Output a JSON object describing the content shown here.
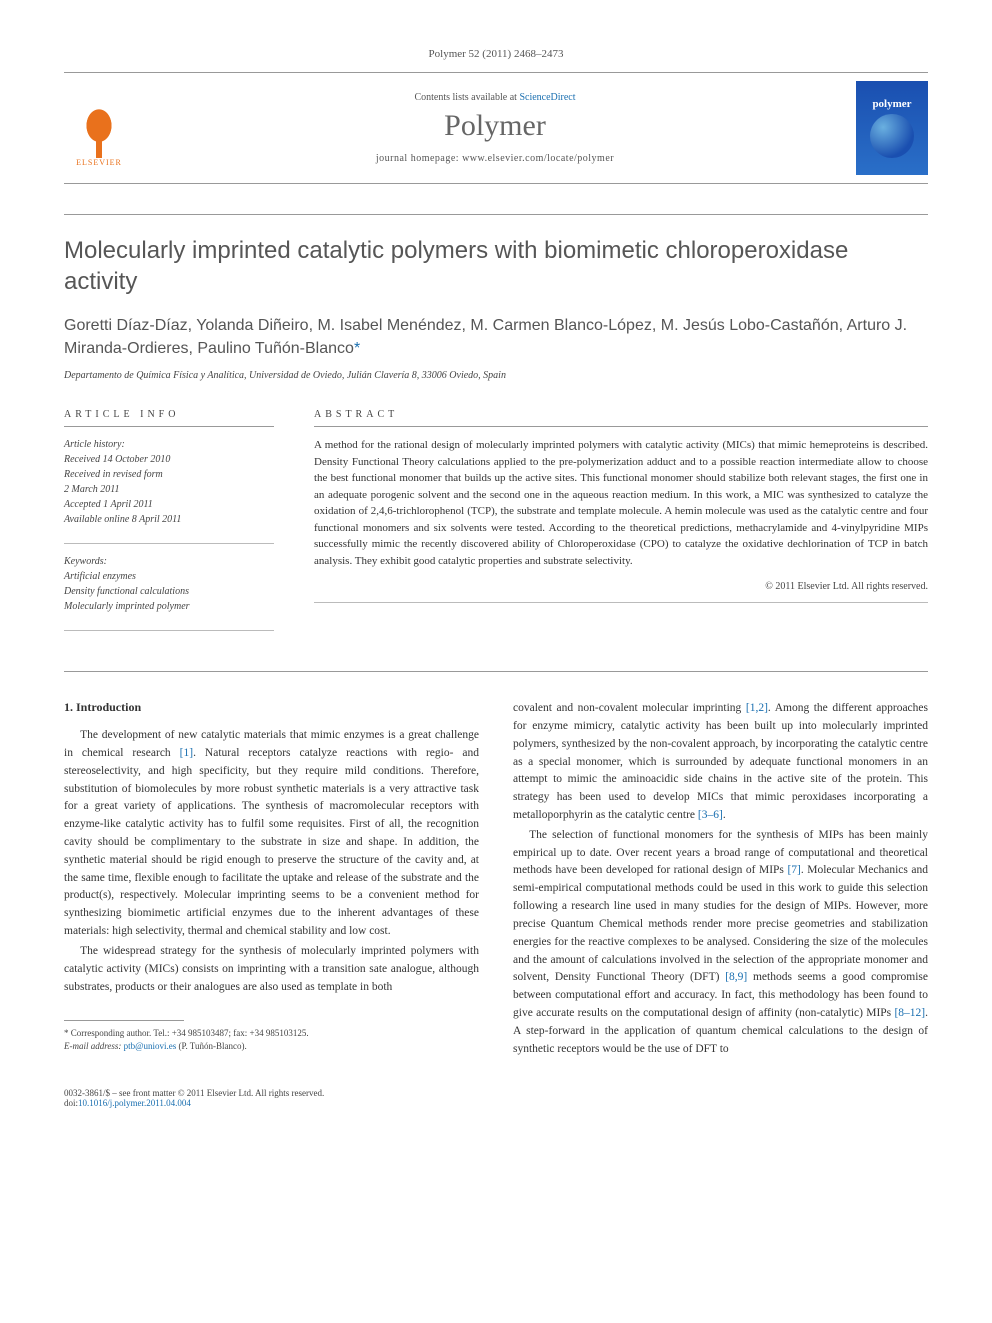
{
  "citation": "Polymer 52 (2011) 2468–2473",
  "header": {
    "contents_prefix": "Contents lists available at ",
    "contents_link": "ScienceDirect",
    "journal": "Polymer",
    "homepage_prefix": "journal homepage: ",
    "homepage_url": "www.elsevier.com/locate/polymer",
    "publisher": "ELSEVIER",
    "cover_label": "polymer"
  },
  "article": {
    "title": "Molecularly imprinted catalytic polymers with biomimetic chloroperoxidase activity",
    "authors": "Goretti Díaz-Díaz, Yolanda Diñeiro, M. Isabel Menéndez, M. Carmen Blanco-López, M. Jesús Lobo-Castañón, Arturo J. Miranda-Ordieres, Paulino Tuñón-Blanco",
    "corr_mark": "*",
    "affiliation": "Departamento de Química Física y Analítica, Universidad de Oviedo, Julián Clavería 8, 33006 Oviedo, Spain"
  },
  "info": {
    "head": "ARTICLE INFO",
    "history_label": "Article history:",
    "received": "Received 14 October 2010",
    "revised1": "Received in revised form",
    "revised2": "2 March 2011",
    "accepted": "Accepted 1 April 2011",
    "online": "Available online 8 April 2011",
    "keywords_label": "Keywords:",
    "kw1": "Artificial enzymes",
    "kw2": "Density functional calculations",
    "kw3": "Molecularly imprinted polymer"
  },
  "abstract": {
    "head": "ABSTRACT",
    "text": "A method for the rational design of molecularly imprinted polymers with catalytic activity (MICs) that mimic hemeproteins is described. Density Functional Theory calculations applied to the pre-polymerization adduct and to a possible reaction intermediate allow to choose the best functional monomer that builds up the active sites. This functional monomer should stabilize both relevant stages, the first one in an adequate porogenic solvent and the second one in the aqueous reaction medium. In this work, a MIC was synthesized to catalyze the oxidation of 2,4,6-trichlorophenol (TCP), the substrate and template molecule. A hemin molecule was used as the catalytic centre and four functional monomers and six solvents were tested. According to the theoretical predictions, methacrylamide and 4-vinylpyridine MIPs successfully mimic the recently discovered ability of Chloroperoxidase (CPO) to catalyze the oxidative dechlorination of TCP in batch analysis. They exhibit good catalytic properties and substrate selectivity.",
    "copyright": "© 2011 Elsevier Ltd. All rights reserved."
  },
  "section1": {
    "heading": "1. Introduction",
    "p1_a": "The development of new catalytic materials that mimic enzymes is a great challenge in chemical research ",
    "p1_ref1": "[1]",
    "p1_b": ". Natural receptors catalyze reactions with regio- and stereoselectivity, and high specificity, but they require mild conditions. Therefore, substitution of biomolecules by more robust synthetic materials is a very attractive task for a great variety of applications. The synthesis of macromolecular receptors with enzyme-like catalytic activity has to fulfil some requisites. First of all, the recognition cavity should be complimentary to the substrate in size and shape. In addition, the synthetic material should be rigid enough to preserve the structure of the cavity and, at the same time, flexible enough to facilitate the uptake and release of the substrate and the product(s), respectively. Molecular imprinting seems to be a convenient method for synthesizing biomimetic artificial enzymes due to the inherent advantages of these materials: high selectivity, thermal and chemical stability and low cost.",
    "p2_a": "The widespread strategy for the synthesis of molecularly imprinted polymers with catalytic activity (MICs) consists on imprinting with a transition sate analogue, although substrates, products or their analogues are also used as template in both ",
    "p2_b": "covalent and non-covalent molecular imprinting ",
    "p2_ref1": "[1,2]",
    "p2_c": ". Among the different approaches for enzyme mimicry, catalytic activity has been built up into molecularly imprinted polymers, synthesized by the non-covalent approach, by incorporating the catalytic centre as a special monomer, which is surrounded by adequate functional monomers in an attempt to mimic the aminoacidic side chains in the active site of the protein. This strategy has been used to develop MICs that mimic peroxidases incorporating a metalloporphyrin as the catalytic centre ",
    "p2_ref2": "[3–6]",
    "p2_d": ".",
    "p3_a": "The selection of functional monomers for the synthesis of MIPs has been mainly empirical up to date. Over recent years a broad range of computational and theoretical methods have been developed for rational design of MIPs ",
    "p3_ref1": "[7]",
    "p3_b": ". Molecular Mechanics and semi-empirical computational methods could be used in this work to guide this selection following a research line used in many studies for the design of MIPs. However, more precise Quantum Chemical methods render more precise geometries and stabilization energies for the reactive complexes to be analysed. Considering the size of the molecules and the amount of calculations involved in the selection of the appropriate monomer and solvent, Density Functional Theory (DFT) ",
    "p3_ref2": "[8,9]",
    "p3_c": " methods seems a good compromise between computational effort and accuracy. In fact, this methodology has been found to give accurate results on the computational design of affinity (non-catalytic) MIPs ",
    "p3_ref3": "[8–12]",
    "p3_d": ". A step-forward in the application of quantum chemical calculations to the design of synthetic receptors would be the use of DFT to "
  },
  "footnote": {
    "corr": "* Corresponding author. Tel.: +34 985103487; fax: +34 985103125.",
    "email_label": "E-mail address: ",
    "email": "ptb@uniovi.es",
    "email_name": " (P. Tuñón-Blanco)."
  },
  "footer": {
    "left1": "0032-3861/$ – see front matter © 2011 Elsevier Ltd. All rights reserved.",
    "left2_prefix": "doi:",
    "doi": "10.1016/j.polymer.2011.04.004"
  },
  "colors": {
    "link": "#1a6fb0",
    "elsevier": "#e9711c",
    "text": "#333333",
    "heading": "#565656"
  }
}
